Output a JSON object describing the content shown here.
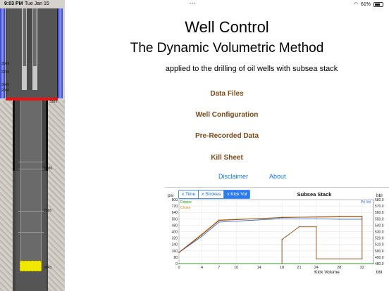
{
  "status": {
    "time": "9:03 PM",
    "date": "Tue Jan 15",
    "battery": "61%"
  },
  "well": {
    "labels": [
      "3609",
      "3250",
      "3609",
      "2800",
      "3383",
      "5906",
      "7566",
      "9843"
    ]
  },
  "main": {
    "title1": "Well Control",
    "title2": "The Dynamic Volumetric Method",
    "subtitle": "applied to the drilling of oil wells with subsea stack",
    "menu": [
      "Data Files",
      "Well Configuration",
      "Pre-Recorded Data",
      "Kill Sheet"
    ],
    "disclaimer": "Disclaimer",
    "about": "About"
  },
  "chart_data": {
    "type": "line",
    "title": "Subsea Stack",
    "tabs": [
      "x Time",
      "x Strokes",
      "x Kick Vol"
    ],
    "selected_tab": "x Kick Vol",
    "xlabel": "Kick Volume",
    "xunit": "bbl",
    "ylabel_left": "psi",
    "ylabel_right": "bbl",
    "x_ticks": [
      0,
      4,
      7,
      10,
      14,
      18,
      21,
      24,
      28,
      32
    ],
    "y_left_ticks": [
      0,
      80,
      160,
      240,
      320,
      400,
      480,
      560,
      640,
      720,
      800
    ],
    "y_right_ticks": [
      "480.0",
      "490.0",
      "500.0",
      "510.0",
      "520.0",
      "530.0",
      "540.0",
      "550.0",
      "560.0",
      "570.0",
      "580.0"
    ],
    "xlim": [
      0,
      34
    ],
    "ylim_left": [
      0,
      800
    ],
    "ylim_right": [
      480,
      580
    ],
    "legend": [
      {
        "name": "Dripipe",
        "color": "#2e9a2e"
      },
      {
        "name": "Pit Vol",
        "color": "#3366cc"
      },
      {
        "name": "Choke",
        "color": "#e08a1e"
      }
    ],
    "series": [
      {
        "name": "Dripipe",
        "color": "#2e9a2e",
        "points": [
          [
            0,
            0
          ],
          [
            34,
            0
          ]
        ]
      },
      {
        "name": "Choke",
        "color": "#e08a1e",
        "points": [
          [
            0,
            140
          ],
          [
            4,
            370
          ],
          [
            7,
            545
          ],
          [
            17.5,
            575
          ],
          [
            18,
            580
          ],
          [
            24,
            580
          ],
          [
            28,
            585
          ],
          [
            32,
            585
          ]
        ]
      },
      {
        "name": "Pit Vol",
        "color": "#3366cc",
        "points": [
          [
            0,
            140
          ],
          [
            4,
            340
          ],
          [
            7,
            520
          ],
          [
            17.5,
            560
          ],
          [
            24,
            560
          ],
          [
            28,
            555
          ],
          [
            32,
            555
          ]
        ]
      },
      {
        "name": "",
        "color": "#8b4513",
        "points": [
          [
            0,
            140
          ],
          [
            4,
            360
          ],
          [
            7,
            540
          ],
          [
            18,
            575
          ],
          [
            28,
            590
          ],
          [
            32,
            590
          ],
          [
            32,
            60
          ],
          [
            24,
            60
          ],
          [
            24,
            460
          ],
          [
            21,
            460
          ],
          [
            18,
            300
          ],
          [
            18,
            0
          ]
        ]
      }
    ],
    "annotations": [
      "Kick Volume"
    ]
  }
}
